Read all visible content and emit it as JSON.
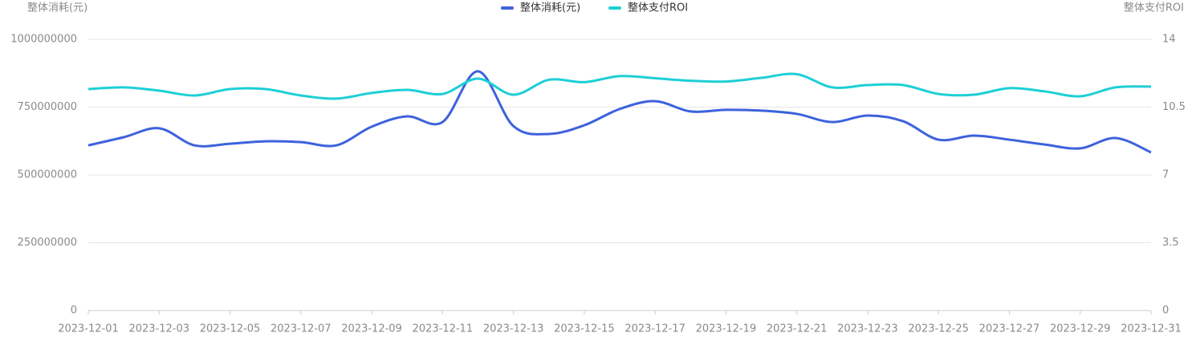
{
  "chart_data": {
    "type": "line",
    "y_label": "整体消耗(元)",
    "y2_label": "整体支付ROI",
    "categories": [
      "2023-12-01",
      null,
      "2023-12-03",
      null,
      "2023-12-05",
      null,
      "2023-12-07",
      null,
      "2023-12-09",
      null,
      "2023-12-11",
      null,
      "2023-12-13",
      null,
      "2023-12-15",
      null,
      "2023-12-17",
      null,
      "2023-12-19",
      null,
      "2023-12-21",
      null,
      "2023-12-23",
      null,
      "2023-12-25",
      null,
      "2023-12-27",
      null,
      "2023-12-29",
      null,
      "2023-12-31"
    ],
    "series": [
      {
        "name": "整体消耗(元)",
        "color": "#3d62dc",
        "values": [
          609000000,
          639000000,
          672000000,
          609000000,
          615000000,
          624000000,
          621000000,
          609000000,
          678000000,
          716000000,
          695000000,
          882000000,
          680000000,
          651000000,
          683000000,
          743000000,
          772000000,
          734000000,
          740000000,
          737000000,
          725000000,
          695000000,
          719000000,
          698000000,
          630000000,
          645000000,
          630000000,
          612000000,
          598000000,
          636000000,
          583000000
        ]
      },
      {
        "name": "整体支付ROI",
        "color": "#1dcfd6",
        "axis": "y2",
        "values": [
          11.43,
          11.52,
          11.35,
          11.1,
          11.43,
          11.43,
          11.1,
          10.94,
          11.23,
          11.39,
          11.18,
          11.97,
          11.14,
          11.91,
          11.79,
          12.1,
          11.99,
          11.86,
          11.82,
          12.01,
          12.2,
          11.52,
          11.64,
          11.64,
          11.18,
          11.14,
          11.48,
          11.31,
          11.06,
          11.52,
          11.56
        ]
      }
    ],
    "ylim": [
      0,
      1000000000
    ],
    "yticks": [
      0,
      250000000,
      500000000,
      750000000,
      1000000000
    ],
    "y2lim": [
      0,
      14
    ],
    "y2ticks": [
      0,
      3.5,
      7,
      10.5,
      14
    ],
    "grid": true,
    "legend": "top"
  }
}
